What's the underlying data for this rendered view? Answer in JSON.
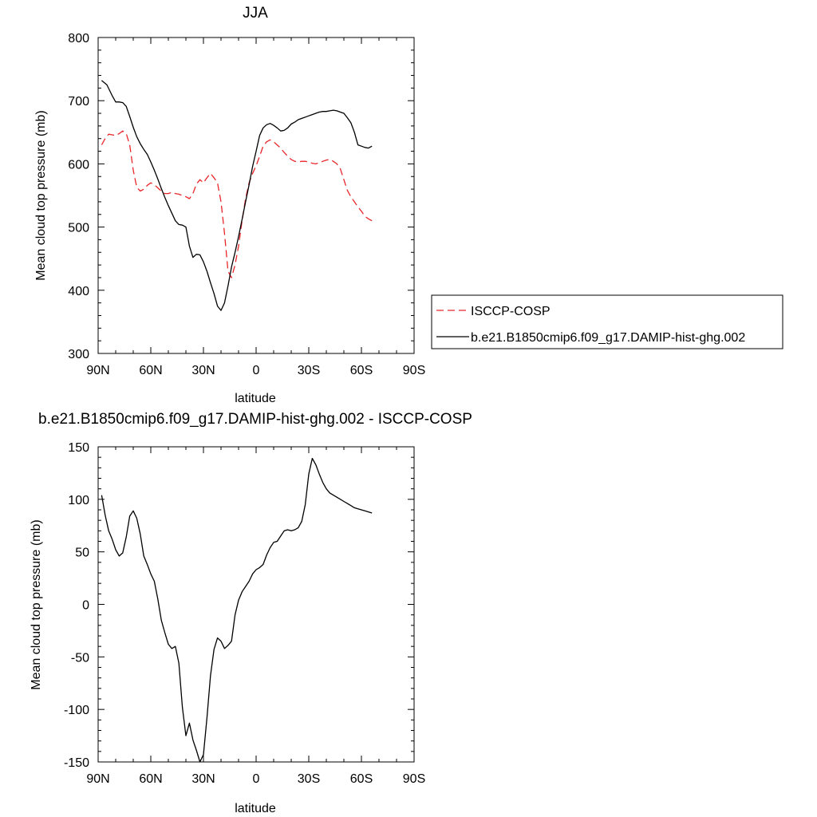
{
  "chart_data": [
    {
      "type": "line",
      "title": "JJA",
      "xlabel": "latitude",
      "ylabel": "Mean cloud top pressure (mb)",
      "xlim": [
        90,
        -90
      ],
      "ylim": [
        300,
        800
      ],
      "x_ticks": [
        90,
        60,
        30,
        0,
        -30,
        -60,
        -90
      ],
      "x_tick_labels": [
        "90N",
        "60N",
        "30N",
        "0",
        "30S",
        "60S",
        "90S"
      ],
      "y_ticks": [
        300,
        400,
        500,
        600,
        700,
        800
      ],
      "y_tick_labels": [
        "300",
        "400",
        "500",
        "600",
        "700",
        "800"
      ],
      "legend": "right",
      "grid": false,
      "series": [
        {
          "name": "ISCCP-COSP",
          "color": "#e8262a",
          "dash": "dashed",
          "x": [
            88,
            86,
            84,
            82,
            80,
            78,
            76,
            74,
            72,
            70,
            68,
            66,
            64,
            62,
            60,
            58,
            56,
            54,
            52,
            50,
            48,
            46,
            44,
            42,
            40,
            38,
            36,
            34,
            32,
            30,
            28,
            26,
            24,
            22,
            20,
            18,
            16,
            14,
            12,
            10,
            8,
            6,
            4,
            2,
            0,
            -2,
            -4,
            -6,
            -8,
            -10,
            -12,
            -14,
            -16,
            -18,
            -20,
            -22,
            -24,
            -26,
            -28,
            -30,
            -32,
            -34,
            -36,
            -38,
            -40,
            -42,
            -44,
            -46,
            -48,
            -50,
            -52,
            -54,
            -56,
            -58,
            -60,
            -62,
            -64,
            -66
          ],
          "y": [
            630,
            640,
            647,
            646,
            645,
            648,
            652,
            648,
            630,
            590,
            563,
            557,
            560,
            566,
            570,
            567,
            562,
            557,
            553,
            553,
            555,
            553,
            552,
            550,
            548,
            545,
            553,
            568,
            575,
            570,
            578,
            585,
            578,
            570,
            540,
            490,
            430,
            420,
            440,
            470,
            510,
            545,
            570,
            585,
            597,
            612,
            628,
            635,
            638,
            635,
            630,
            625,
            618,
            612,
            607,
            604,
            603,
            604,
            604,
            603,
            601,
            600,
            602,
            604,
            606,
            607,
            604,
            600,
            592,
            575,
            558,
            548,
            540,
            532,
            525,
            517,
            513,
            510
          ]
        },
        {
          "name": "b.e21.B1850cmip6.f09_g17.DAMIP-hist-ghg.002",
          "color": "#000000",
          "dash": "solid",
          "x": [
            88,
            85,
            82,
            80,
            78,
            76,
            74,
            72,
            70,
            68,
            66,
            64,
            62,
            60,
            58,
            56,
            54,
            52,
            50,
            48,
            46,
            44,
            42,
            40,
            38,
            36,
            34,
            32,
            30,
            28,
            26,
            24,
            22,
            20,
            18,
            16,
            14,
            12,
            10,
            8,
            6,
            4,
            2,
            0,
            -2,
            -4,
            -6,
            -8,
            -10,
            -12,
            -14,
            -16,
            -18,
            -20,
            -22,
            -24,
            -26,
            -28,
            -30,
            -32,
            -34,
            -36,
            -38,
            -40,
            -42,
            -44,
            -46,
            -48,
            -50,
            -52,
            -54,
            -56,
            -58,
            -60,
            -62,
            -64,
            -66
          ],
          "y": [
            732,
            725,
            708,
            698,
            698,
            697,
            691,
            675,
            658,
            643,
            632,
            623,
            615,
            603,
            590,
            576,
            561,
            547,
            534,
            522,
            510,
            504,
            503,
            500,
            470,
            452,
            457,
            456,
            445,
            430,
            412,
            395,
            375,
            368,
            380,
            407,
            437,
            460,
            485,
            512,
            540,
            567,
            596,
            620,
            645,
            657,
            662,
            664,
            661,
            657,
            652,
            653,
            657,
            663,
            666,
            670,
            672,
            674,
            676,
            678,
            680,
            682,
            683,
            683,
            684,
            685,
            684,
            682,
            680,
            673,
            665,
            650,
            630,
            628,
            626,
            625,
            628
          ]
        }
      ]
    },
    {
      "type": "line",
      "title": "b.e21.B1850cmip6.f09_g17.DAMIP-hist-ghg.002 - ISCCP-COSP",
      "xlabel": "latitude",
      "ylabel": "Mean cloud top pressure (mb)",
      "xlim": [
        90,
        -90
      ],
      "ylim": [
        -150,
        150
      ],
      "x_ticks": [
        90,
        60,
        30,
        0,
        -30,
        -60,
        -90
      ],
      "x_tick_labels": [
        "90N",
        "60N",
        "30N",
        "0",
        "30S",
        "60S",
        "90S"
      ],
      "y_ticks": [
        -150,
        -100,
        -50,
        0,
        50,
        100,
        150
      ],
      "y_tick_labels": [
        "-150",
        "-100",
        "-50",
        "0",
        "50",
        "100",
        "150"
      ],
      "grid": false,
      "series": [
        {
          "color": "#000000",
          "dash": "solid",
          "x": [
            88,
            86,
            84,
            82,
            80,
            78,
            76,
            74,
            72,
            70,
            68,
            66,
            64,
            62,
            60,
            58,
            56,
            54,
            52,
            50,
            48,
            46,
            44,
            42,
            40,
            38,
            36,
            34,
            32,
            30,
            28,
            26,
            24,
            22,
            20,
            18,
            16,
            14,
            12,
            10,
            8,
            6,
            4,
            2,
            0,
            -2,
            -4,
            -6,
            -8,
            -10,
            -12,
            -14,
            -16,
            -18,
            -20,
            -22,
            -24,
            -26,
            -28,
            -30,
            -32,
            -34,
            -36,
            -38,
            -40,
            -42,
            -44,
            -46,
            -48,
            -50,
            -52,
            -54,
            -56,
            -58,
            -60,
            -62,
            -64,
            -66
          ],
          "y": [
            104,
            85,
            70,
            62,
            52,
            46,
            49,
            64,
            84,
            89,
            82,
            67,
            46,
            38,
            29,
            22,
            5,
            -15,
            -27,
            -38,
            -42,
            -40,
            -56,
            -98,
            -125,
            -113,
            -129,
            -139,
            -150,
            -143,
            -108,
            -68,
            -43,
            -32,
            -35,
            -42,
            -39,
            -35,
            -10,
            4,
            12,
            17,
            22,
            29,
            33,
            35,
            38,
            47,
            54,
            59,
            60,
            65,
            70,
            71,
            70,
            71,
            73,
            79,
            95,
            124,
            139,
            133,
            124,
            116,
            110,
            106,
            104,
            102,
            100,
            98,
            96,
            94,
            92,
            91,
            90,
            89,
            88,
            87
          ]
        }
      ]
    }
  ]
}
